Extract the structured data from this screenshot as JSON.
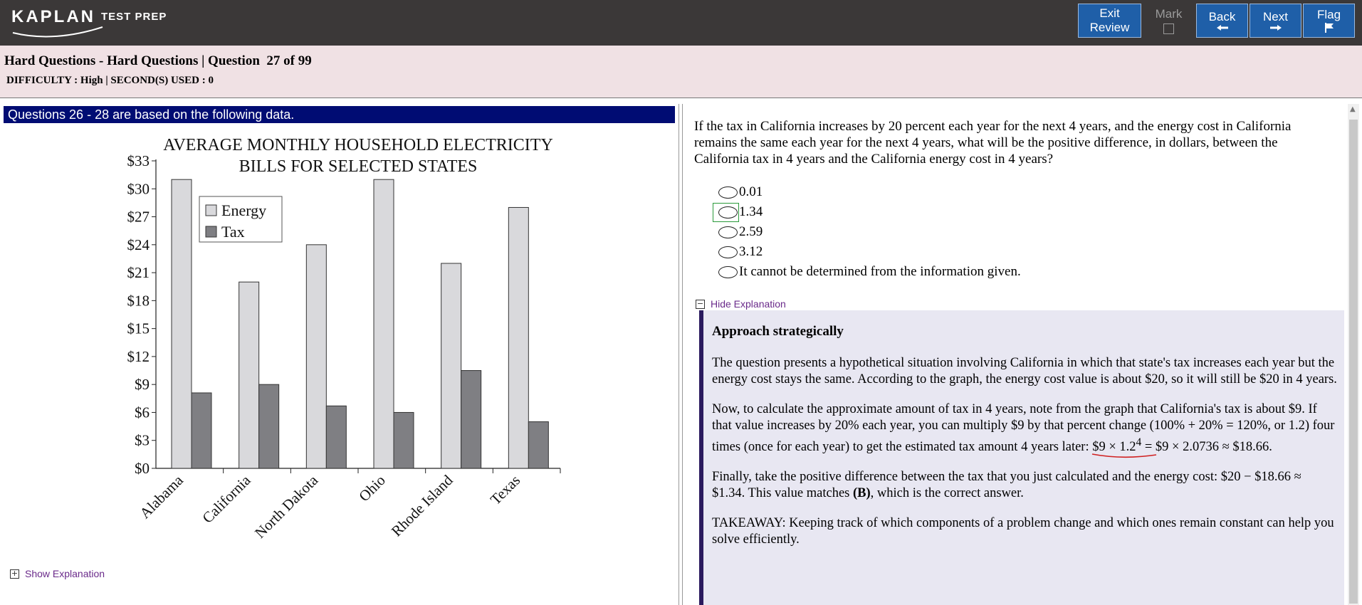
{
  "header": {
    "logo_main": "KAPLAN",
    "logo_sub": "TEST PREP",
    "buttons": {
      "exit": "Exit",
      "exit_sub": "Review",
      "mark": "Mark",
      "back": "Back",
      "next": "Next",
      "flag": "Flag"
    }
  },
  "info": {
    "title": "Hard Questions - Hard Questions | Question  27 of 99",
    "difficulty": "DIFFICULTY : High | SECOND(S) USED : 0"
  },
  "left": {
    "banner": "Questions 26 - 28 are based on the following data.",
    "show_explanation": "Show Explanation"
  },
  "chart_data": {
    "type": "bar",
    "title_lines": [
      "AVERAGE MONTHLY HOUSEHOLD ELECTRICITY",
      "BILLS FOR SELECTED STATES"
    ],
    "categories": [
      "Alabama",
      "California",
      "North Dakota",
      "Ohio",
      "Rhode Island",
      "Texas"
    ],
    "series": [
      {
        "name": "Energy",
        "color": "#d9d9dc",
        "values": [
          31,
          20,
          24,
          31,
          22,
          28
        ]
      },
      {
        "name": "Tax",
        "color": "#7f7f83",
        "values": [
          8.1,
          9,
          6.7,
          6,
          10.5,
          5
        ]
      }
    ],
    "ytick_labels": [
      "$0",
      "$3",
      "$6",
      "$9",
      "$12",
      "$15",
      "$18",
      "$21",
      "$24",
      "$27",
      "$30",
      "$33"
    ],
    "ylim": [
      0,
      33
    ],
    "legend_position": "top-left",
    "grid": false
  },
  "question": {
    "stem": "If the tax in California increases by 20 percent each year for the next 4 years, and the energy cost in California remains the same each year for the next 4 years, what will be the positive difference, in dollars, between the California tax in 4 years and the California energy cost in 4 years?",
    "choices": [
      "0.01",
      "1.34",
      "2.59",
      "3.12",
      "It cannot be determined from the information given."
    ],
    "highlighted_choice": 1
  },
  "explanation": {
    "toggle": "Hide Explanation",
    "heading": "Approach strategically",
    "p1": "The question presents a hypothetical situation involving California in which that state's tax increases each year but the energy cost stays the same. According to the graph, the energy cost value is about $20, so it will still be $20 in 4 years.",
    "p2_start": "Now, to calculate the approximate amount of tax in 4 years, note from the graph that California's tax is about $9. If that value increases by 20% each year, you can multiply $9 by that percent change (100% + 20% = 120%, or 1.2) four times (once for each year) to get the estimated tax amount 4 years later: ",
    "p2_mark": "$9 × 1.2",
    "p2_exp": "4",
    "p2_end": " = $9 × 2.0736 ≈ $18.66.",
    "p3_start": "Finally, take the positive difference between the tax that you just calculated and the energy cost: $20 − $18.66 ≈ $1.34. This value matches ",
    "p3_bold": "(B)",
    "p3_end": ", which is the correct answer.",
    "p4": "TAKEAWAY: Keeping track of which components of a problem change and which ones remain constant can help you solve efficiently."
  }
}
